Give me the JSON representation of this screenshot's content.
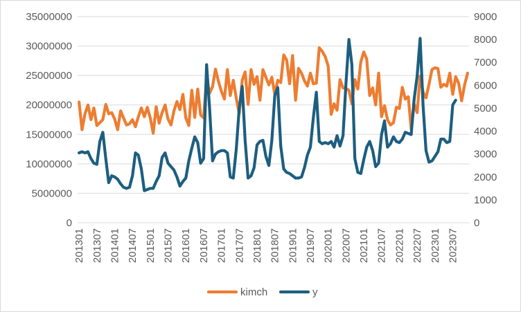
{
  "chart_data": {
    "type": "line",
    "title": "",
    "xlabel": "",
    "ylabel": "",
    "y2label": "",
    "grid": true,
    "legend_position": "bottom",
    "ylim": [
      0,
      35000000
    ],
    "y2lim": [
      0,
      9000
    ],
    "y_ticks": [
      "0",
      "5000000",
      "10000000",
      "15000000",
      "20000000",
      "25000000",
      "30000000",
      "35000000"
    ],
    "y2_ticks": [
      "0",
      "1000",
      "2000",
      "3000",
      "4000",
      "5000",
      "6000",
      "7000",
      "8000",
      "9000"
    ],
    "x_tick_labels": [
      "201301",
      "201307",
      "201401",
      "201407",
      "201501",
      "201507",
      "201601",
      "201607",
      "201701",
      "201707",
      "201801",
      "201807",
      "201901",
      "201907",
      "202001",
      "202007",
      "202101",
      "202107",
      "202201",
      "202207",
      "202301",
      "202307"
    ],
    "x_start": "2013-01",
    "x_end": "2023-09",
    "series": [
      {
        "name": "kimch",
        "axis": "left",
        "color": "#ED7D31",
        "values": [
          20500000,
          15800000,
          18500000,
          20000000,
          17500000,
          19500000,
          16500000,
          17000000,
          17500000,
          20100000,
          18500000,
          18700000,
          17600000,
          15800000,
          19000000,
          17800000,
          16600000,
          16800000,
          17500000,
          16300000,
          18000000,
          19500000,
          18000000,
          19600000,
          17800000,
          15200000,
          19700000,
          16900000,
          18700000,
          20000000,
          17600000,
          16600000,
          19000000,
          20600000,
          19200000,
          21800000,
          17800000,
          16500000,
          22500000,
          17900000,
          22700000,
          18300000,
          17800000,
          24700000,
          22000000,
          23100000,
          26100000,
          24000000,
          22300000,
          21000000,
          26000000,
          21600000,
          24200000,
          21200000,
          18500000,
          24200000,
          25600000,
          20100000,
          26000000,
          23500000,
          24800000,
          20800000,
          26000000,
          24700000,
          23400000,
          24700000,
          21800000,
          24200000,
          23800000,
          28500000,
          27600000,
          23600000,
          28400000,
          20800000,
          26200000,
          25400000,
          24100000,
          23200000,
          25400000,
          23600000,
          23700000,
          29700000,
          29100000,
          28200000,
          26600000,
          18400000,
          20200000,
          19100000,
          24300000,
          22900000,
          22800000,
          22500000,
          20200000,
          24300000,
          22700000,
          27300000,
          29000000,
          27800000,
          21600000,
          22900000,
          20000000,
          25400000,
          18000000,
          19900000,
          17500000,
          16600000,
          17000000,
          19600000,
          19400000,
          23000000,
          21000000,
          21400000,
          15900000,
          20200000,
          18700000,
          24900000,
          22200000,
          21200000,
          23500000,
          26000000,
          26300000,
          26200000,
          23000000,
          23500000,
          23200000,
          25400000,
          21800000,
          24800000,
          23700000,
          20700000,
          23400000,
          25400000
        ]
      },
      {
        "name": "y",
        "axis": "right",
        "color": "#1D5E80",
        "values": [
          3050,
          3100,
          3050,
          3100,
          2800,
          2600,
          2550,
          3550,
          3950,
          2800,
          1750,
          2050,
          2000,
          1900,
          1700,
          1550,
          1500,
          1550,
          2050,
          3050,
          2950,
          2350,
          1400,
          1450,
          1500,
          1500,
          1800,
          2050,
          2850,
          3050,
          2600,
          2450,
          2300,
          2000,
          1600,
          1800,
          1950,
          2700,
          3250,
          3750,
          3500,
          2600,
          2800,
          6900,
          5000,
          2700,
          3000,
          3100,
          3150,
          3150,
          3050,
          2000,
          1950,
          3200,
          5000,
          5950,
          3600,
          1950,
          2050,
          2400,
          3400,
          3550,
          3600,
          2900,
          2500,
          3600,
          5550,
          5900,
          3350,
          2350,
          2200,
          2150,
          2050,
          1950,
          1950,
          2000,
          2400,
          2950,
          3300,
          4600,
          5700,
          3550,
          3450,
          3500,
          3450,
          3550,
          3300,
          3800,
          3350,
          3800,
          6100,
          8000,
          6900,
          2800,
          2200,
          2150,
          2750,
          3300,
          3550,
          3150,
          2450,
          2600,
          3850,
          4450,
          3300,
          3450,
          3750,
          3550,
          3500,
          3650,
          3950,
          3900,
          3850,
          5400,
          6400,
          8050,
          5100,
          3150,
          2650,
          2700,
          2900,
          3100,
          3650,
          3650,
          3500,
          3550,
          5150,
          5350
        ]
      }
    ]
  }
}
